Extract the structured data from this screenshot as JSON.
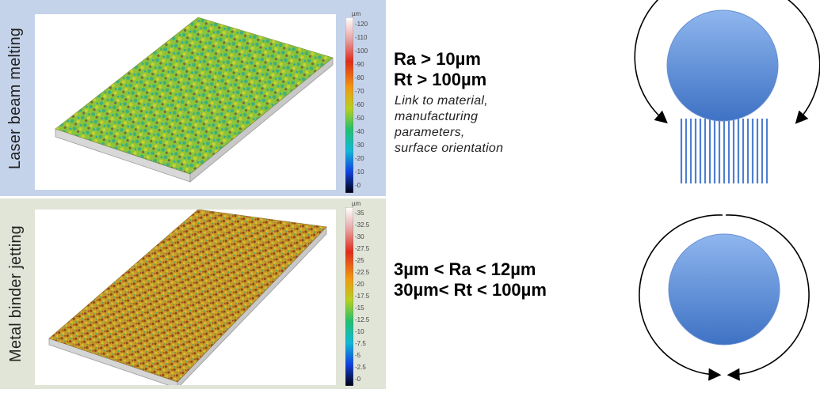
{
  "panels": [
    {
      "label": "Laser beam melting",
      "colorbar": {
        "unit": "µm",
        "ticks": [
          "120",
          "110",
          "100",
          "90",
          "80",
          "70",
          "60",
          "50",
          "40",
          "30",
          "20",
          "10",
          "0"
        ]
      },
      "metrics": [
        "Ra > 10µm",
        "Rt > 100µm"
      ],
      "note": [
        "Link to material,",
        "manufacturing",
        "parameters,",
        "surface orientation"
      ]
    },
    {
      "label": "Metal binder jetting",
      "colorbar": {
        "unit": "µm",
        "ticks": [
          "35",
          "32.5",
          "30",
          "27.5",
          "25",
          "22.5",
          "20",
          "17.5",
          "15",
          "12.5",
          "10",
          "7.5",
          "5",
          "2.5",
          "0"
        ]
      },
      "metrics": [
        "3µm < Ra < 12µm",
        "30µm< Rt < 100µm"
      ]
    }
  ],
  "colors": {
    "lbm_bg": "#c5d3ea",
    "mbj_bg": "#e1e5d8",
    "sphere": "#6f9de0"
  }
}
